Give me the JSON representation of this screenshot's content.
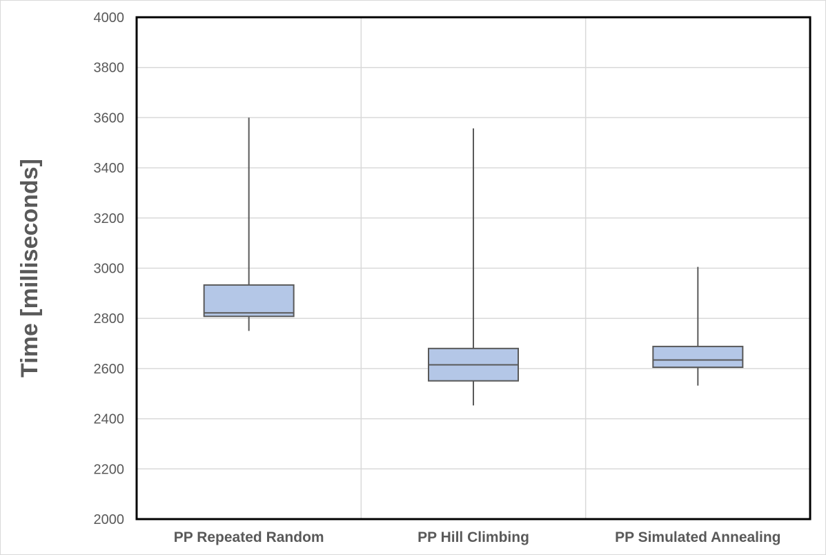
{
  "chart_data": {
    "type": "box",
    "title": "",
    "xlabel": "",
    "ylabel": "Time [milliseconds]",
    "ylim": [
      2000,
      4000
    ],
    "ytick_step": 200,
    "yticks": [
      "2000",
      "2200",
      "2400",
      "2600",
      "2800",
      "3000",
      "3200",
      "3400",
      "3600",
      "3800",
      "4000"
    ],
    "grid": true,
    "legend": "none",
    "box_color": "#b4c7e7",
    "line_color": "#595959",
    "categories": [
      "PP Repeated Random",
      "PP Hill Climbing",
      "PP Simulated Annealing"
    ],
    "boxes": [
      {
        "min": 2750,
        "q1": 2808,
        "median": 2822,
        "q3": 2933,
        "max": 3600
      },
      {
        "min": 2453,
        "q1": 2551,
        "median": 2615,
        "q3": 2680,
        "max": 3557
      },
      {
        "min": 2532,
        "q1": 2605,
        "median": 2634,
        "q3": 2688,
        "max": 3005
      }
    ]
  }
}
